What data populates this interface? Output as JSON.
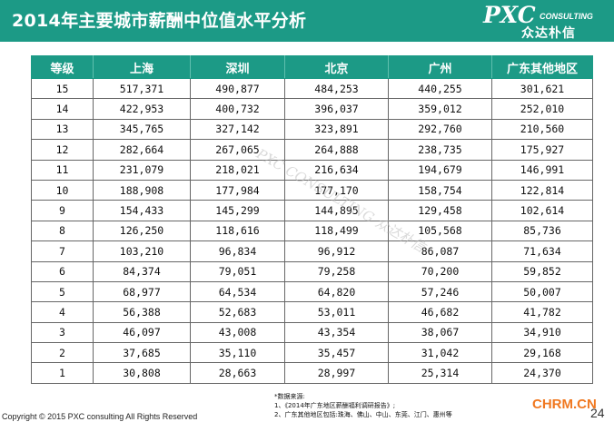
{
  "title": "2014年主要城市薪酬中位值水平分析",
  "logo": {
    "main": "PXC",
    "sub": "CONSULTING",
    "chinese": "众达朴信"
  },
  "watermark": "PXC CONSULTING 众达朴信",
  "table": {
    "headers": [
      "等级",
      "上海",
      "深圳",
      "北京",
      "广州",
      "广东其他地区"
    ],
    "rows": [
      [
        "15",
        "517,371",
        "490,877",
        "484,253",
        "440,255",
        "301,621"
      ],
      [
        "14",
        "422,953",
        "400,732",
        "396,037",
        "359,012",
        "252,010"
      ],
      [
        "13",
        "345,765",
        "327,142",
        "323,891",
        "292,760",
        "210,560"
      ],
      [
        "12",
        "282,664",
        "267,065",
        "264,888",
        "238,735",
        "175,927"
      ],
      [
        "11",
        "231,079",
        "218,021",
        "216,634",
        "194,679",
        "146,991"
      ],
      [
        "10",
        "188,908",
        "177,984",
        "177,170",
        "158,754",
        "122,814"
      ],
      [
        "9",
        "154,433",
        "145,299",
        "144,895",
        "129,458",
        "102,614"
      ],
      [
        "8",
        "126,250",
        "118,616",
        "118,499",
        "105,568",
        "85,736"
      ],
      [
        "7",
        "103,210",
        "96,834",
        "96,912",
        "86,087",
        "71,634"
      ],
      [
        "6",
        "84,374",
        "79,051",
        "79,258",
        "70,200",
        "59,852"
      ],
      [
        "5",
        "68,977",
        "64,534",
        "64,820",
        "57,246",
        "50,007"
      ],
      [
        "4",
        "56,388",
        "52,683",
        "53,011",
        "46,682",
        "41,782"
      ],
      [
        "3",
        "46,097",
        "43,008",
        "43,354",
        "38,067",
        "34,910"
      ],
      [
        "2",
        "37,685",
        "35,110",
        "35,457",
        "31,042",
        "29,168"
      ],
      [
        "1",
        "30,808",
        "28,663",
        "28,997",
        "25,314",
        "24,370"
      ]
    ]
  },
  "source": {
    "heading": "*数据来源:",
    "line1": "1、《2014年广东地区薪酬福利调研报告》;",
    "line2": "2、广东其他地区包括:珠海、佛山、中山、东莞、江门、惠州等"
  },
  "copyright": "Copyright © 2015 PXC consulting All Rights Reserved",
  "site_watermark": "CHRM.CN",
  "page_number": "24"
}
